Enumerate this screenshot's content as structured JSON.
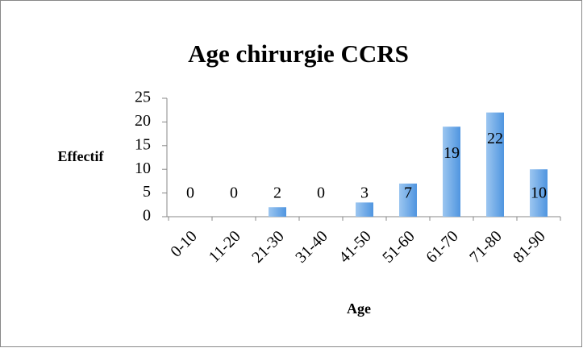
{
  "chart_data": {
    "type": "bar",
    "title": "Age chirurgie CCRS",
    "y_label": "Effectif",
    "x_label": "Age",
    "categories": [
      "0-10",
      "11-20",
      "21-30",
      "31-40",
      "41-50",
      "51-60",
      "61-70",
      "71-80",
      "81-90"
    ],
    "values": [
      0,
      0,
      2,
      0,
      3,
      7,
      19,
      22,
      10
    ],
    "color": "#4f95e0",
    "ylim": [
      0,
      25
    ],
    "yticks": [
      0,
      5,
      10,
      15,
      20,
      25
    ],
    "grid": false,
    "data_labels": true
  }
}
